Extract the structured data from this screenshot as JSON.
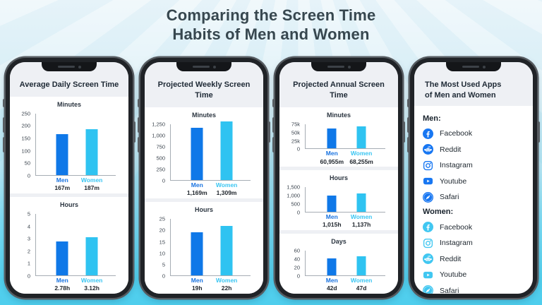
{
  "title": {
    "line1": "Comparing the Screen Time",
    "line2": "Habits of Men and Women"
  },
  "colors": {
    "men_bar": "#0F78E8",
    "women_bar": "#2FC3F1",
    "men_label": "#1B74E0",
    "women_label": "#3BC6F2",
    "title_text": "#37474F",
    "background_top": "#DFF0F7",
    "background_bottom": "#52D0EE"
  },
  "phones": [
    {
      "type": "charts",
      "title": "Average Daily Screen Time",
      "charts": [
        0,
        1
      ]
    },
    {
      "type": "charts",
      "title": "Projected Weekly Screen Time",
      "charts": [
        2,
        3
      ]
    },
    {
      "type": "charts",
      "title": "Projected Annual Screen Time",
      "charts": [
        4,
        5,
        6
      ]
    },
    {
      "type": "apps",
      "title": "The Most Used Apps of Men and Women",
      "title_lines": [
        "The Most Used Apps",
        "of Men and Women"
      ],
      "sections": [
        {
          "heading": "Men:",
          "icon_color": "#1877F2",
          "apps": [
            "Facebook",
            "Reddit",
            "Instagram",
            "Youtube",
            "Safari"
          ]
        },
        {
          "heading": "Women:",
          "icon_color": "#41C7F1",
          "apps": [
            "Facebook",
            "Instagram",
            "Reddit",
            "Youtube",
            "Safari"
          ]
        }
      ]
    }
  ],
  "chart_data": [
    {
      "type": "bar",
      "group": "Average Daily Screen Time",
      "title": "Minutes",
      "categories": [
        "Men",
        "Women"
      ],
      "values": [
        167,
        187
      ],
      "labels": [
        "167m",
        "187m"
      ],
      "yticks": [
        "250",
        "200",
        "150",
        "100",
        "50",
        "0"
      ],
      "ymax": 250,
      "ylim": [
        0,
        250
      ]
    },
    {
      "type": "bar",
      "group": "Average Daily Screen Time",
      "title": "Hours",
      "categories": [
        "Men",
        "Women"
      ],
      "values": [
        2.78,
        3.12
      ],
      "labels": [
        "2.78h",
        "3.12h"
      ],
      "yticks": [
        "5",
        "4",
        "3",
        "2",
        "1",
        "0"
      ],
      "ymax": 5,
      "ylim": [
        0,
        5
      ]
    },
    {
      "type": "bar",
      "group": "Projected Weekly Screen Time",
      "title": "Minutes",
      "categories": [
        "Men",
        "Women"
      ],
      "values": [
        1169,
        1309
      ],
      "labels": [
        "1,169m",
        "1,309m"
      ],
      "yticks": [
        "1,250",
        "1,000",
        "750",
        "500",
        "250",
        "0"
      ],
      "ymax": 1250,
      "ylim": [
        0,
        1250
      ]
    },
    {
      "type": "bar",
      "group": "Projected Weekly Screen Time",
      "title": "Hours",
      "categories": [
        "Men",
        "Women"
      ],
      "values": [
        19,
        22
      ],
      "labels": [
        "19h",
        "22h"
      ],
      "yticks": [
        "25",
        "20",
        "15",
        "10",
        "5",
        "0"
      ],
      "ymax": 25,
      "ylim": [
        0,
        25
      ]
    },
    {
      "type": "bar",
      "group": "Projected Annual Screen Time",
      "title": "Minutes",
      "categories": [
        "Men",
        "Women"
      ],
      "values": [
        60955,
        68255
      ],
      "labels": [
        "60,955m",
        "68,255m"
      ],
      "yticks": [
        "75k",
        "50k",
        "25k",
        "0"
      ],
      "ymax": 75000,
      "ylim": [
        0,
        75000
      ]
    },
    {
      "type": "bar",
      "group": "Projected Annual Screen Time",
      "title": "Hours",
      "categories": [
        "Men",
        "Women"
      ],
      "values": [
        1015,
        1137
      ],
      "labels": [
        "1,015h",
        "1,137h"
      ],
      "yticks": [
        "1,500",
        "1,000",
        "500",
        "0"
      ],
      "ymax": 1500,
      "ylim": [
        0,
        1500
      ]
    },
    {
      "type": "bar",
      "group": "Projected Annual Screen Time",
      "title": "Days",
      "categories": [
        "Men",
        "Women"
      ],
      "values": [
        42,
        47
      ],
      "labels": [
        "42d",
        "47d"
      ],
      "yticks": [
        "60",
        "40",
        "20",
        "0"
      ],
      "ymax": 60,
      "ylim": [
        0,
        60
      ]
    }
  ]
}
